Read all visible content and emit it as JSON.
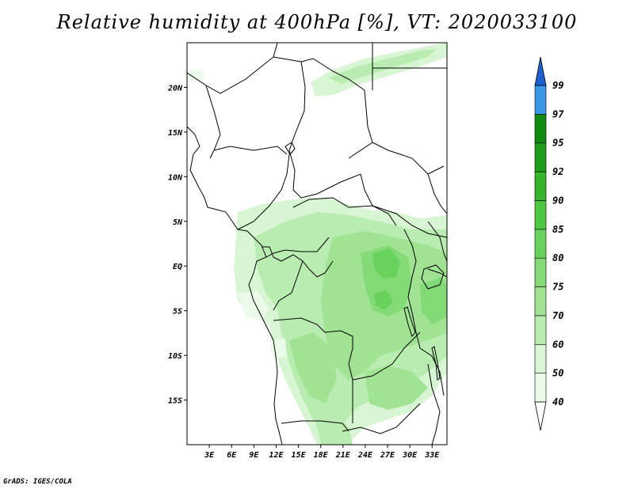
{
  "title": "Relative humidity at 400hPa [%], VT: 2020033100",
  "credit": "GrADS: IGES/COLA",
  "colors": {
    "coast": "#000000",
    "frame": "#000000"
  },
  "map": {
    "lon_range": [
      0,
      35
    ],
    "lat_range": [
      -20,
      25
    ],
    "lon_ticks": [
      {
        "v": 3,
        "label": "3E"
      },
      {
        "v": 6,
        "label": "6E"
      },
      {
        "v": 9,
        "label": "9E"
      },
      {
        "v": 12,
        "label": "12E"
      },
      {
        "v": 15,
        "label": "15E"
      },
      {
        "v": 18,
        "label": "18E"
      },
      {
        "v": 21,
        "label": "21E"
      },
      {
        "v": 24,
        "label": "24E"
      },
      {
        "v": 27,
        "label": "27E"
      },
      {
        "v": 30,
        "label": "30E"
      },
      {
        "v": 33,
        "label": "33E"
      }
    ],
    "lat_ticks": [
      {
        "v": 20,
        "label": "20N"
      },
      {
        "v": 15,
        "label": "15N"
      },
      {
        "v": 10,
        "label": "10N"
      },
      {
        "v": 5,
        "label": "5N"
      },
      {
        "v": 0,
        "label": "EQ"
      },
      {
        "v": -5,
        "label": "5S"
      },
      {
        "v": -10,
        "label": "10S"
      },
      {
        "v": -15,
        "label": "15S"
      }
    ]
  },
  "colorbar": {
    "levels": [
      {
        "label": "40",
        "color": "#ebfbe9"
      },
      {
        "label": "50",
        "color": "#d8f5d3"
      },
      {
        "label": "60",
        "color": "#b9ecb0"
      },
      {
        "label": "70",
        "color": "#9fe393"
      },
      {
        "label": "75",
        "color": "#84da77"
      },
      {
        "label": "80",
        "color": "#69d25c"
      },
      {
        "label": "85",
        "color": "#4fc743"
      },
      {
        "label": "90",
        "color": "#35b42c"
      },
      {
        "label": "92",
        "color": "#1f9d1a"
      },
      {
        "label": "95",
        "color": "#118a11"
      },
      {
        "label": "97",
        "color": "#3c96e8"
      },
      {
        "label": "99",
        "color": "#1f6fd6"
      }
    ],
    "low_end_color": "#ffffff",
    "high_end_color": "#1e5fd0"
  }
}
